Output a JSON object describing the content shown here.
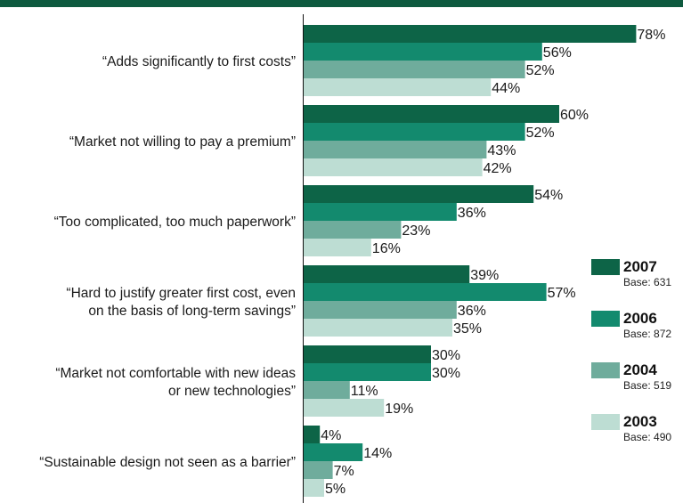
{
  "colors": {
    "band": "#0e5a3f",
    "series": [
      "#0d6447",
      "#138a6e",
      "#6fac9c",
      "#bdddd3"
    ]
  },
  "chart_data": {
    "type": "bar",
    "orientation": "horizontal",
    "title": "",
    "xlabel": "",
    "ylabel": "",
    "xlim": [
      0,
      78
    ],
    "grid": false,
    "legend_position": "right",
    "categories": [
      [
        "“Adds significantly to first costs”"
      ],
      [
        "“Market not willing to pay a premium”"
      ],
      [
        "“Too complicated, too much paperwork”"
      ],
      [
        "“Hard to justify greater first cost, even",
        "on the basis of long-term savings”"
      ],
      [
        "“Market not comfortable with new ideas",
        "or new technologies”"
      ],
      [
        "“Sustainable design not seen as a barrier”"
      ]
    ],
    "series": [
      {
        "name": "2007",
        "base": "Base: 631",
        "values": [
          78,
          60,
          54,
          39,
          30,
          4
        ]
      },
      {
        "name": "2006",
        "base": "Base: 872",
        "values": [
          56,
          52,
          36,
          57,
          30,
          14
        ]
      },
      {
        "name": "2004",
        "base": "Base: 519",
        "values": [
          52,
          43,
          23,
          36,
          11,
          7
        ]
      },
      {
        "name": "2003",
        "base": "Base: 490",
        "values": [
          44,
          42,
          16,
          35,
          19,
          5
        ]
      }
    ],
    "value_suffix": "%"
  }
}
